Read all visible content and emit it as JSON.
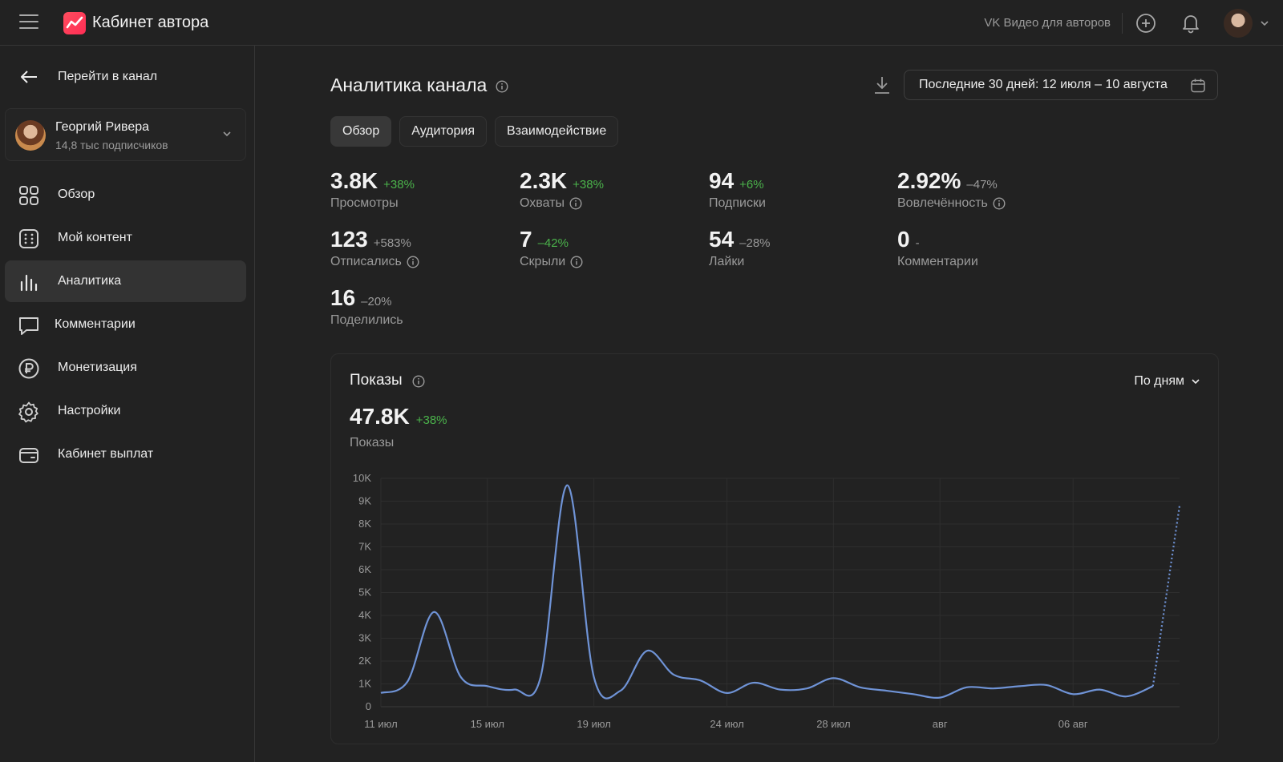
{
  "header": {
    "app_title": "Кабинет автора",
    "vk_link": "VK Видео для авторов",
    "icons": [
      "menu-icon",
      "add-icon",
      "bell-icon",
      "chevron-down-icon"
    ]
  },
  "sidebar": {
    "back_label": "Перейти в канал",
    "channel": {
      "name": "Георгий Ривера",
      "subscribers": "14,8 тыс подписчиков"
    },
    "items": [
      {
        "label": "Обзор",
        "icon": "grid-icon",
        "active": false
      },
      {
        "label": "Мой контент",
        "icon": "content-icon",
        "active": false
      },
      {
        "label": "Аналитика",
        "icon": "analytics-icon",
        "active": true
      },
      {
        "label": "Комментарии",
        "icon": "comment-icon",
        "active": false
      },
      {
        "label": "Монетизация",
        "icon": "ruble-icon",
        "active": false
      },
      {
        "label": "Настройки",
        "icon": "gear-icon",
        "active": false
      },
      {
        "label": "Кабинет выплат",
        "icon": "wallet-icon",
        "active": false
      }
    ]
  },
  "main": {
    "title": "Аналитика канала",
    "date_range": "Последние 30 дней: 12 июля – 10 августа",
    "tabs": [
      {
        "label": "Обзор",
        "active": true
      },
      {
        "label": "Аудитория",
        "active": false
      },
      {
        "label": "Взаимодействие",
        "active": false
      }
    ],
    "metrics": [
      {
        "value": "3.8K",
        "change": "+38%",
        "trend": "up",
        "label": "Просмотры",
        "info": false
      },
      {
        "value": "2.3K",
        "change": "+38%",
        "trend": "up",
        "label": "Охваты",
        "info": true
      },
      {
        "value": "94",
        "change": "+6%",
        "trend": "up",
        "label": "Подписки",
        "info": false
      },
      {
        "value": "2.92%",
        "change": "–47%",
        "trend": "down",
        "label": "Вовлечённость",
        "info": true
      },
      {
        "value": "123",
        "change": "+583%",
        "trend": "down",
        "label": "Отписались",
        "info": true
      },
      {
        "value": "7",
        "change": "–42%",
        "trend": "up",
        "label": "Скрыли",
        "info": true
      },
      {
        "value": "54",
        "change": "–28%",
        "trend": "down",
        "label": "Лайки",
        "info": false
      },
      {
        "value": "0",
        "change": "-",
        "trend": "down",
        "label": "Комментарии",
        "info": false
      },
      {
        "value": "16",
        "change": "–20%",
        "trend": "down",
        "label": "Поделились",
        "info": false
      }
    ]
  },
  "chart_card": {
    "title": "Показы",
    "period_selector": "По дням",
    "total_value": "47.8K",
    "total_change": "+38%",
    "total_label": "Показы"
  },
  "chart_data": {
    "type": "line",
    "title": "Показы",
    "ylim": [
      0,
      10000
    ],
    "y_ticks": [
      "0",
      "1K",
      "2K",
      "3K",
      "4K",
      "5K",
      "6K",
      "7K",
      "8K",
      "9K",
      "10K"
    ],
    "x_tick_labels": [
      "11 июл",
      "15 июл",
      "19 июл",
      "24 июл",
      "28 июл",
      "авг",
      "06 авг"
    ],
    "x": [
      "11 июл",
      "12 июл",
      "13 июл",
      "14 июл",
      "15 июл",
      "16 июл",
      "17 июл",
      "18 июл",
      "19 июл",
      "20 июл",
      "21 июл",
      "22 июл",
      "23 июл",
      "24 июл",
      "25 июл",
      "26 июл",
      "27 июл",
      "28 июл",
      "29 июл",
      "30 июл",
      "31 июл",
      "01 авг",
      "02 авг",
      "03 авг",
      "04 авг",
      "05 авг",
      "06 авг",
      "07 авг",
      "08 авг",
      "09 авг",
      "10 авг"
    ],
    "series": [
      {
        "values": [
          600,
          1100,
          4150,
          1300,
          900,
          750,
          1300,
          9700,
          1300,
          700,
          2450,
          1400,
          1150,
          600,
          1050,
          750,
          800,
          1250,
          850,
          700,
          550,
          400,
          850,
          800,
          900,
          950,
          550,
          750,
          450,
          900,
          8800
        ],
        "partial_from_index": 29,
        "color": "#6f93d6"
      }
    ],
    "grid": true
  }
}
